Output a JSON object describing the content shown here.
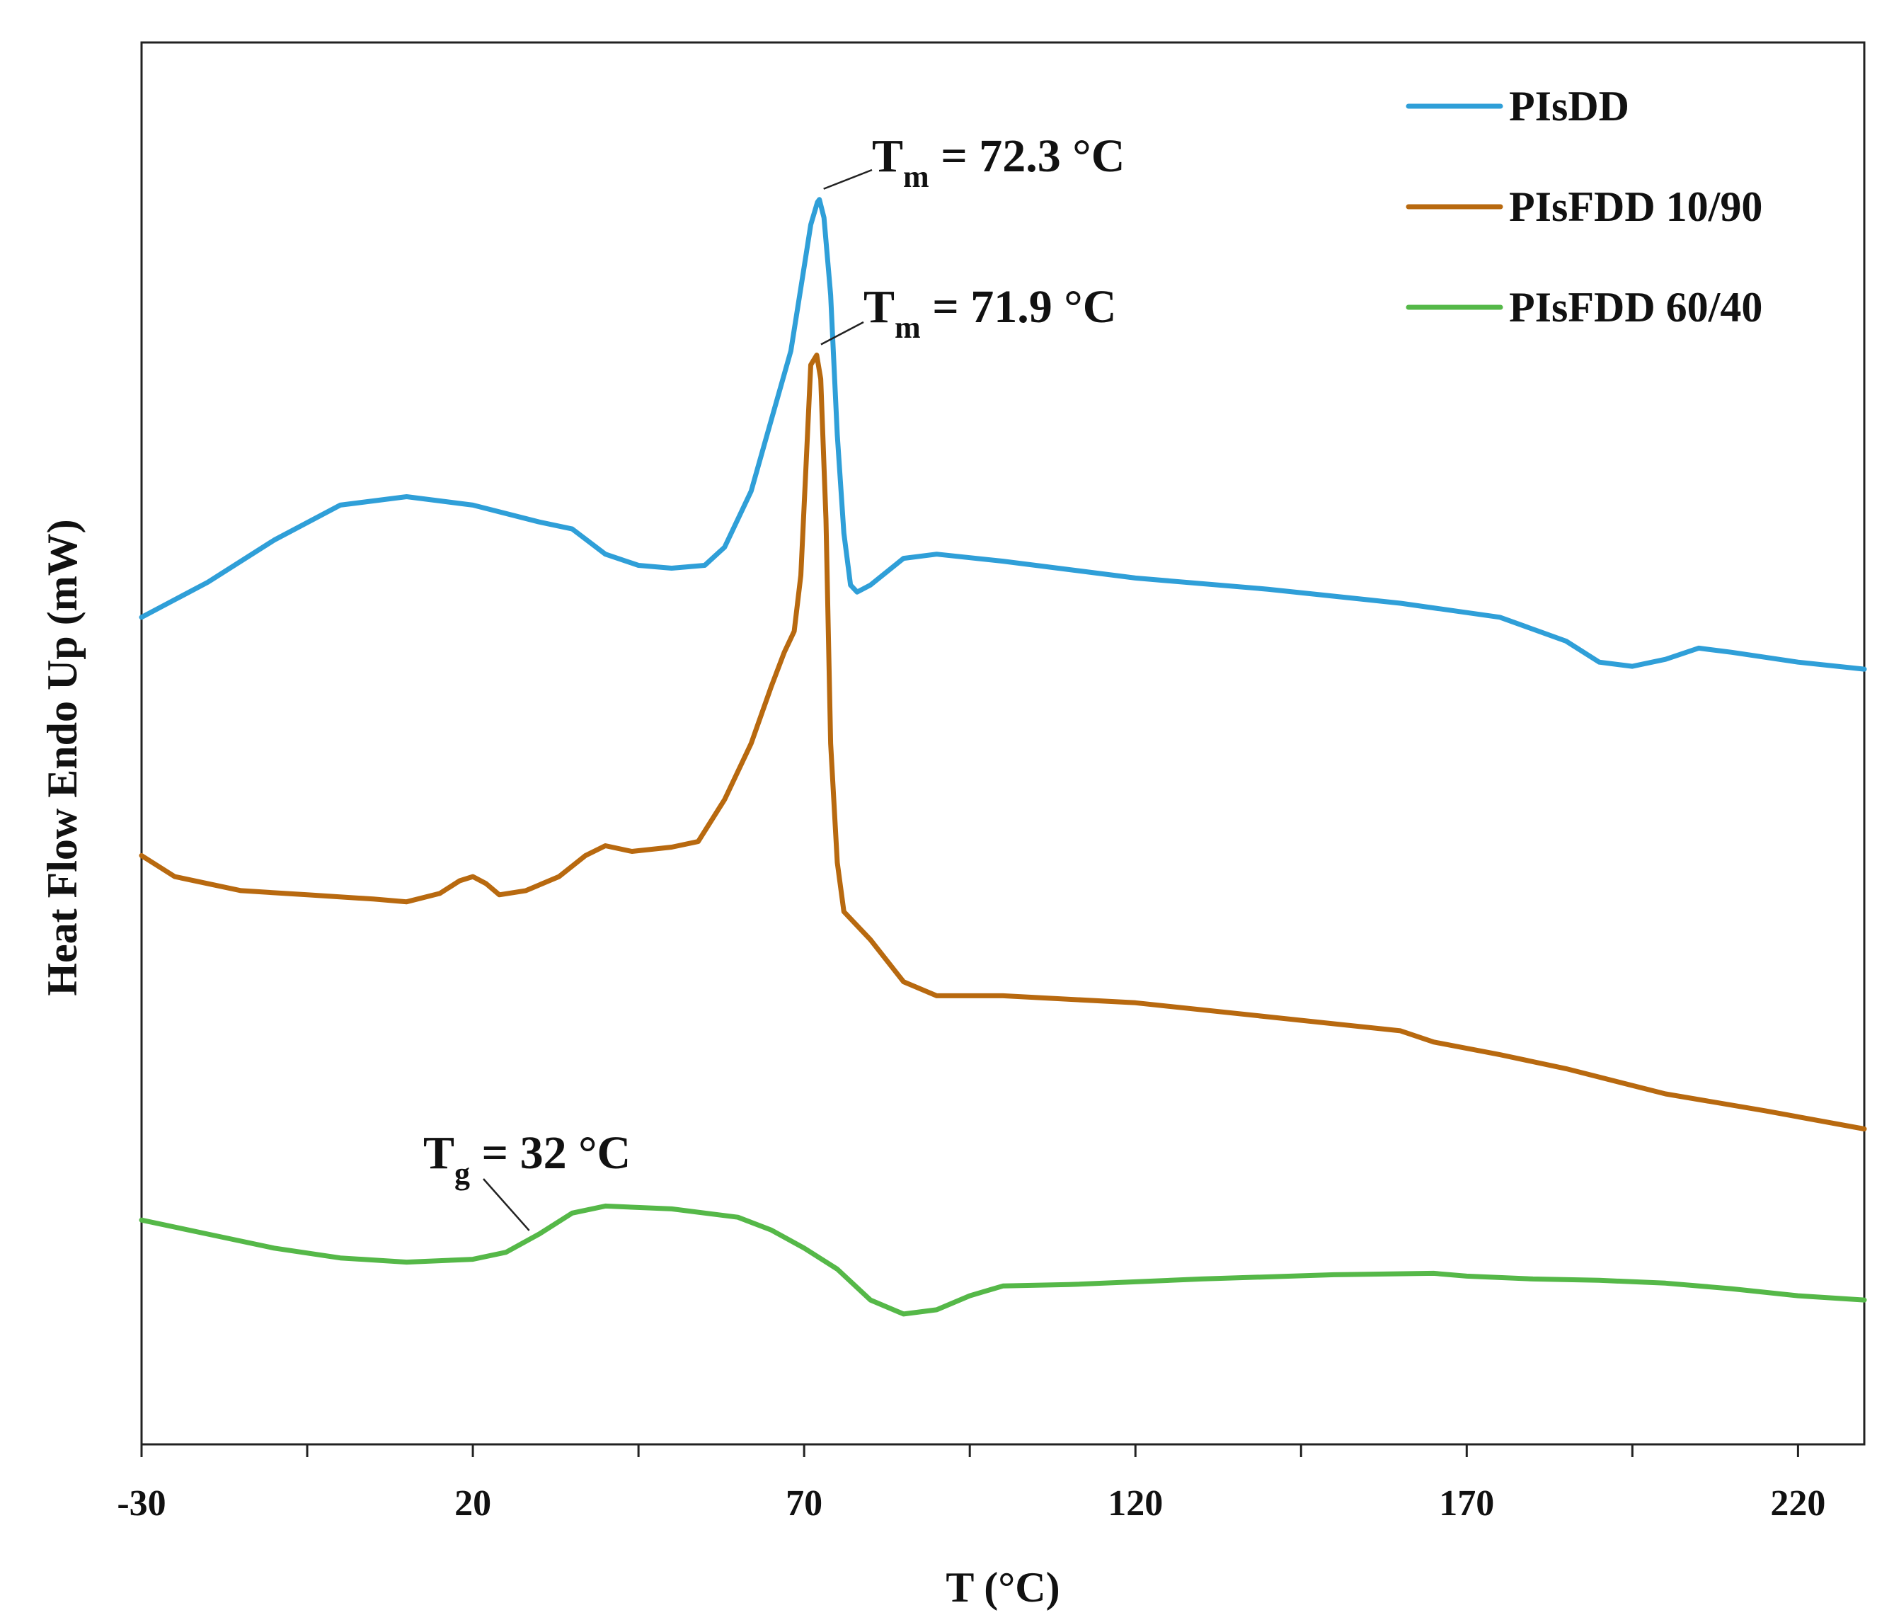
{
  "chart_data": {
    "type": "line",
    "title": "",
    "xlabel": "T (°C)",
    "ylabel": "Heat Flow Endo Up (mW)",
    "xlim": [
      -30,
      230
    ],
    "ylim": [
      0,
      100
    ],
    "x_ticks": [
      "-30",
      "20",
      "70",
      "120",
      "170",
      "220"
    ],
    "legend_position": "top-right",
    "series": [
      {
        "name": "PIsDD",
        "color": "#2f9fd8",
        "points": [
          [
            -30,
            59.0
          ],
          [
            -20,
            61.5
          ],
          [
            -10,
            64.5
          ],
          [
            0,
            67.0
          ],
          [
            10,
            67.6
          ],
          [
            20,
            67.0
          ],
          [
            30,
            65.8
          ],
          [
            35,
            65.3
          ],
          [
            40,
            63.5
          ],
          [
            45,
            62.7
          ],
          [
            50,
            62.5
          ],
          [
            55,
            62.7
          ],
          [
            58,
            64.0
          ],
          [
            62,
            68.0
          ],
          [
            65,
            73.0
          ],
          [
            68,
            78.0
          ],
          [
            69,
            81.0
          ],
          [
            70,
            84.0
          ],
          [
            71,
            87.0
          ],
          [
            72,
            88.6
          ],
          [
            72.3,
            88.8
          ],
          [
            73,
            87.5
          ],
          [
            74,
            82.0
          ],
          [
            75,
            72.0
          ],
          [
            76,
            65.0
          ],
          [
            77,
            61.3
          ],
          [
            78,
            60.8
          ],
          [
            80,
            61.3
          ],
          [
            85,
            63.2
          ],
          [
            90,
            63.5
          ],
          [
            100,
            63.0
          ],
          [
            120,
            61.8
          ],
          [
            140,
            61.0
          ],
          [
            160,
            60.0
          ],
          [
            175,
            59.0
          ],
          [
            185,
            57.3
          ],
          [
            190,
            55.8
          ],
          [
            195,
            55.5
          ],
          [
            200,
            56.0
          ],
          [
            205,
            56.8
          ],
          [
            210,
            56.5
          ],
          [
            220,
            55.8
          ],
          [
            230,
            55.3
          ]
        ]
      },
      {
        "name": "PIsFDD 10/90",
        "color": "#b8690f",
        "points": [
          [
            -30,
            42.0
          ],
          [
            -25,
            40.5
          ],
          [
            -15,
            39.5
          ],
          [
            -5,
            39.2
          ],
          [
            5,
            38.9
          ],
          [
            10,
            38.7
          ],
          [
            15,
            39.3
          ],
          [
            18,
            40.2
          ],
          [
            20,
            40.5
          ],
          [
            22,
            40.0
          ],
          [
            24,
            39.2
          ],
          [
            28,
            39.5
          ],
          [
            33,
            40.5
          ],
          [
            37,
            42.0
          ],
          [
            40,
            42.7
          ],
          [
            44,
            42.3
          ],
          [
            50,
            42.6
          ],
          [
            54,
            43.0
          ],
          [
            58,
            46.0
          ],
          [
            62,
            50.0
          ],
          [
            65,
            54.0
          ],
          [
            67,
            56.5
          ],
          [
            68.5,
            58.0
          ],
          [
            69.5,
            62.0
          ],
          [
            70.3,
            70.0
          ],
          [
            71,
            77.0
          ],
          [
            71.9,
            77.7
          ],
          [
            72.5,
            76.0
          ],
          [
            73.3,
            66.0
          ],
          [
            74,
            50.0
          ],
          [
            75,
            41.5
          ],
          [
            76,
            38.0
          ],
          [
            80,
            36.0
          ],
          [
            85,
            33.0
          ],
          [
            90,
            32.0
          ],
          [
            100,
            32.0
          ],
          [
            120,
            31.5
          ],
          [
            140,
            30.5
          ],
          [
            160,
            29.5
          ],
          [
            165,
            28.7
          ],
          [
            175,
            27.8
          ],
          [
            185,
            26.8
          ],
          [
            200,
            25.0
          ],
          [
            215,
            23.8
          ],
          [
            230,
            22.5
          ]
        ]
      },
      {
        "name": "PIsFDD 60/40",
        "color": "#55b848",
        "points": [
          [
            -30,
            16.0
          ],
          [
            -20,
            15.0
          ],
          [
            -10,
            14.0
          ],
          [
            0,
            13.3
          ],
          [
            10,
            13.0
          ],
          [
            20,
            13.2
          ],
          [
            25,
            13.7
          ],
          [
            30,
            15.0
          ],
          [
            35,
            16.5
          ],
          [
            40,
            17.0
          ],
          [
            50,
            16.8
          ],
          [
            60,
            16.2
          ],
          [
            65,
            15.3
          ],
          [
            70,
            14.0
          ],
          [
            75,
            12.5
          ],
          [
            80,
            10.3
          ],
          [
            85,
            9.3
          ],
          [
            90,
            9.6
          ],
          [
            95,
            10.6
          ],
          [
            100,
            11.3
          ],
          [
            110,
            11.4
          ],
          [
            130,
            11.8
          ],
          [
            150,
            12.1
          ],
          [
            165,
            12.2
          ],
          [
            170,
            12.0
          ],
          [
            180,
            11.8
          ],
          [
            190,
            11.7
          ],
          [
            200,
            11.5
          ],
          [
            210,
            11.1
          ],
          [
            220,
            10.6
          ],
          [
            230,
            10.3
          ]
        ]
      }
    ],
    "annotations": [
      {
        "main": "T",
        "sub": "m",
        "rest": " = 72.3 °C",
        "at": [
          72.3,
          88.8
        ]
      },
      {
        "main": "T",
        "sub": "m",
        "rest": " = 71.9 °C",
        "at": [
          71.9,
          77.7
        ]
      },
      {
        "main": "T",
        "sub": "g",
        "rest": " = 32 °C",
        "at": [
          28.5,
          14.5
        ]
      }
    ]
  }
}
